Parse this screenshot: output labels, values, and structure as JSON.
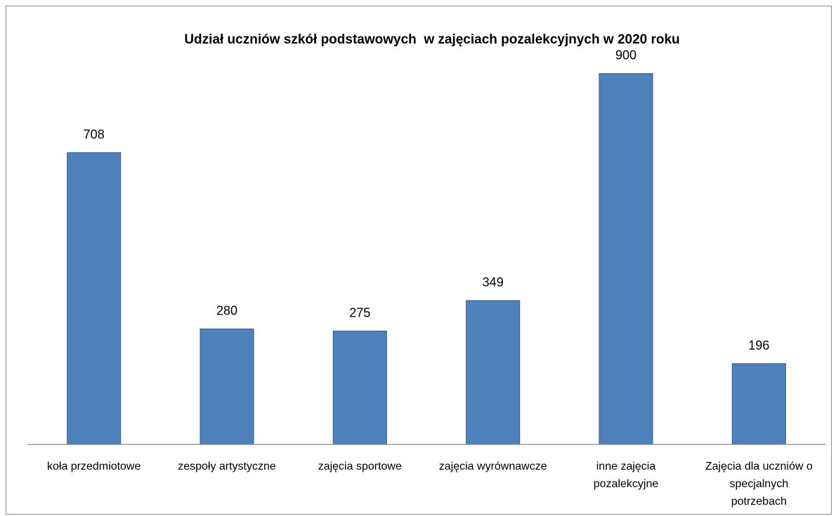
{
  "chart_data": {
    "type": "bar",
    "title": "Udział uczniów szkół podstawowych  w zajęciach pozalekcyjnych w 2020 roku",
    "categories": [
      [
        "koła przedmiotowe"
      ],
      [
        "zespoły artystyczne"
      ],
      [
        "zajęcia sportowe"
      ],
      [
        "zajęcia wyrównawcze"
      ],
      [
        "inne zajęcia",
        "pozalekcyjne"
      ],
      [
        "Zajęcia dla uczniów o",
        "specjalnych",
        "potrzebach"
      ]
    ],
    "values": [
      708,
      280,
      275,
      349,
      900,
      196
    ],
    "ylim": [
      0,
      1000
    ],
    "grid": false,
    "legend": "none",
    "xlabel": "",
    "ylabel": "",
    "colors": {
      "bar_fill": "#4f81bd",
      "bar_stroke": "#2f5a8f",
      "axis": "#868686"
    }
  }
}
